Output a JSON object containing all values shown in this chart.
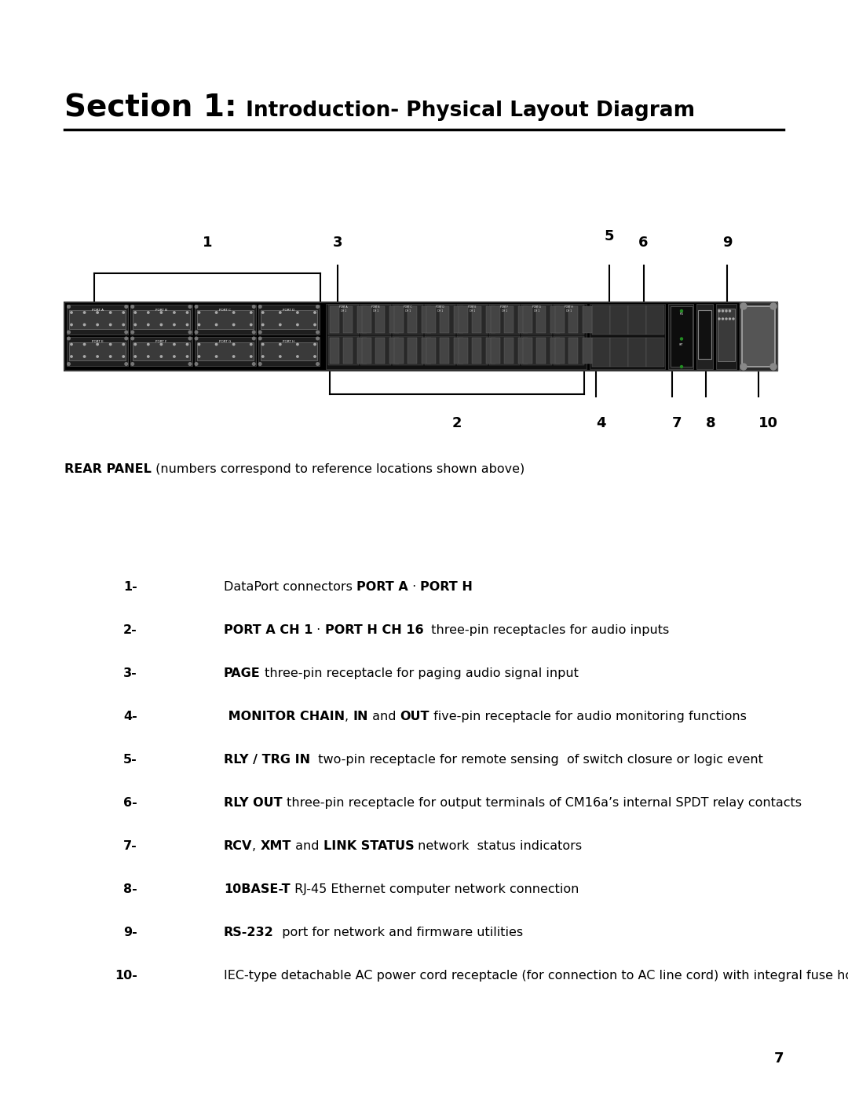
{
  "title_bold": "Section 1:",
  "title_regular": " Introduction- Physical Layout Diagram",
  "background_color": "#ffffff",
  "text_color": "#000000",
  "rear_panel_label_bold": "REAR PANEL",
  "rear_panel_label_rest": " (numbers correspond to reference locations shown above)",
  "items": [
    {
      "num": "1-",
      "parts": [
        [
          "DataPort connectors ",
          false
        ],
        [
          "PORT A",
          true
        ],
        [
          " · ",
          false
        ],
        [
          "PORT H",
          true
        ]
      ]
    },
    {
      "num": "2-",
      "parts": [
        [
          "PORT A CH 1",
          true
        ],
        [
          " · ",
          false
        ],
        [
          "PORT H CH 16",
          true
        ],
        [
          "  three-pin receptacles for audio inputs",
          false
        ]
      ]
    },
    {
      "num": "3-",
      "parts": [
        [
          "PAGE",
          true
        ],
        [
          " three-pin receptacle for paging audio signal input",
          false
        ]
      ]
    },
    {
      "num": "4-",
      "parts": [
        [
          " MONITOR CHAIN",
          true
        ],
        [
          ", ",
          false
        ],
        [
          "IN",
          true
        ],
        [
          " and ",
          false
        ],
        [
          "OUT",
          true
        ],
        [
          " five-pin receptacle for audio monitoring functions",
          false
        ]
      ]
    },
    {
      "num": "5-",
      "parts": [
        [
          "RLY / TRG IN",
          true
        ],
        [
          "  two-pin receptacle for remote sensing  of switch closure or logic event",
          false
        ]
      ]
    },
    {
      "num": "6-",
      "parts": [
        [
          "RLY OUT",
          true
        ],
        [
          " three-pin receptacle for output terminals of CM16a’s internal SPDT relay contacts",
          false
        ]
      ]
    },
    {
      "num": "7-",
      "parts": [
        [
          "RCV",
          true
        ],
        [
          ", ",
          false
        ],
        [
          "XMT",
          true
        ],
        [
          " and ",
          false
        ],
        [
          "LINK STATUS",
          true
        ],
        [
          " network  status indicators",
          false
        ]
      ]
    },
    {
      "num": "8-",
      "parts": [
        [
          "10BASE-T",
          true
        ],
        [
          " RJ-45 Ethernet computer network connection",
          false
        ]
      ]
    },
    {
      "num": "9-",
      "parts": [
        [
          "RS-232",
          true
        ],
        [
          "  port for network and firmware utilities",
          false
        ]
      ]
    },
    {
      "num": "10-",
      "parts": [
        [
          "IEC-type detachable AC power cord receptacle (for connection to AC line cord) with integral fuse holder",
          false
        ]
      ]
    }
  ],
  "page_number": "7"
}
